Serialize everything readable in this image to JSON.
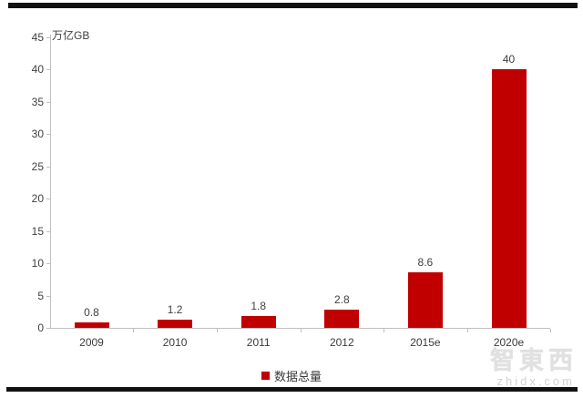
{
  "chart_data": {
    "type": "bar",
    "title": "",
    "unit_label": "万亿GB",
    "categories": [
      "2009",
      "2010",
      "2011",
      "2012",
      "2015e",
      "2020e"
    ],
    "series": [
      {
        "name": "数据总量",
        "values": [
          0.8,
          1.2,
          1.8,
          2.8,
          8.6,
          40
        ],
        "color": "#c00000"
      }
    ],
    "data_labels": [
      "0.8",
      "1.2",
      "1.8",
      "2.8",
      "8.6",
      "40"
    ],
    "ylim": [
      0,
      45
    ],
    "yticks": [
      0,
      5,
      10,
      15,
      20,
      25,
      30,
      35,
      40,
      45
    ],
    "grid": false,
    "legend_position": "bottom-center",
    "colors": {
      "bar": "#c00000",
      "axis": "#bfbfbf",
      "tick_label": "#3f3f3f",
      "data_label": "#404040",
      "page_border": "#111111",
      "watermark": "#e1e1e1"
    }
  },
  "legend": {
    "label": "数据总量"
  },
  "watermark": {
    "brand": "智東西",
    "site": "zhidx.com"
  }
}
